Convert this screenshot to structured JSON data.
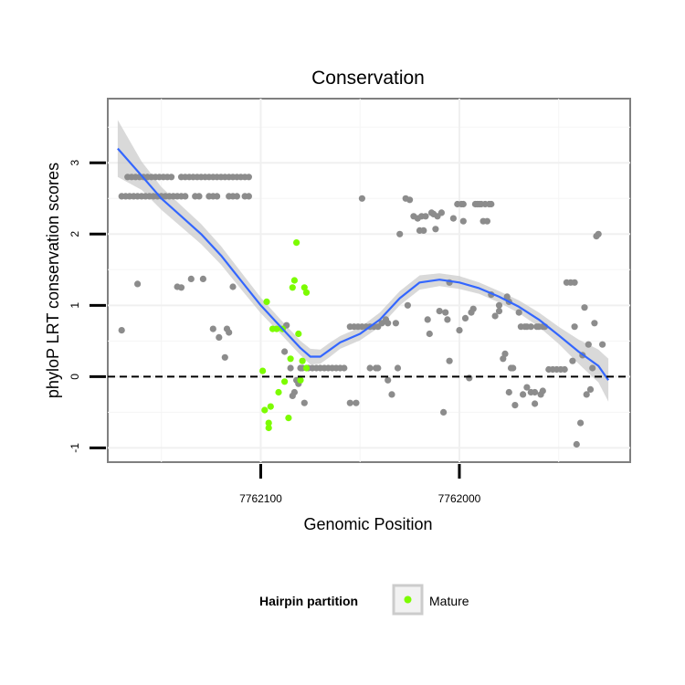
{
  "chart_data": {
    "type": "scatter",
    "title": "Conservation",
    "xlabel": "Genomic Position",
    "ylabel": "phyloP LRT conservation scores",
    "x_reversed": true,
    "xlim": [
      7762177,
      7761914
    ],
    "ylim": [
      -1.2,
      3.9
    ],
    "x_ticks": [
      7762100,
      7762000
    ],
    "x_tick_labels": [
      "7762100",
      "7762000"
    ],
    "y_ticks": [
      -1,
      0,
      1,
      2,
      3
    ],
    "y_tick_labels": [
      "-1",
      "0",
      "1",
      "2",
      "3"
    ],
    "grid": true,
    "reference_line": {
      "y": 0,
      "style": "dashed",
      "color": "#000000"
    },
    "legend": {
      "title": "Hairpin partition",
      "position": "bottom",
      "entries": [
        {
          "label": "Mature",
          "color": "#7CFC00"
        }
      ]
    },
    "colors": {
      "other": "#8c8c8c",
      "mature": "#7CFC00",
      "smooth": "#3366FF",
      "band": "#cccccc"
    },
    "series": [
      {
        "group": "other",
        "points": [
          [
            7762170,
            0.65
          ],
          [
            7762167,
            2.8
          ],
          [
            7762165,
            2.8
          ],
          [
            7762163,
            2.8
          ],
          [
            7762161,
            2.8
          ],
          [
            7762159,
            2.8
          ],
          [
            7762157,
            2.8
          ],
          [
            7762155,
            2.8
          ],
          [
            7762153,
            2.8
          ],
          [
            7762151,
            2.8
          ],
          [
            7762149,
            2.8
          ],
          [
            7762147,
            2.8
          ],
          [
            7762145,
            2.8
          ],
          [
            7762140,
            2.8
          ],
          [
            7762138,
            2.8
          ],
          [
            7762136,
            2.8
          ],
          [
            7762134,
            2.8
          ],
          [
            7762132,
            2.8
          ],
          [
            7762130,
            2.8
          ],
          [
            7762128,
            2.8
          ],
          [
            7762126,
            2.8
          ],
          [
            7762124,
            2.8
          ],
          [
            7762122,
            2.8
          ],
          [
            7762120,
            2.8
          ],
          [
            7762118,
            2.8
          ],
          [
            7762116,
            2.8
          ],
          [
            7762114,
            2.8
          ],
          [
            7762112,
            2.8
          ],
          [
            7762110,
            2.8
          ],
          [
            7762108,
            2.8
          ],
          [
            7762106,
            2.8
          ],
          [
            7762170,
            2.53
          ],
          [
            7762168,
            2.53
          ],
          [
            7762166,
            2.53
          ],
          [
            7762164,
            2.53
          ],
          [
            7762162,
            2.53
          ],
          [
            7762160,
            2.53
          ],
          [
            7762158,
            2.53
          ],
          [
            7762156,
            2.53
          ],
          [
            7762154,
            2.53
          ],
          [
            7762152,
            2.53
          ],
          [
            7762150,
            2.53
          ],
          [
            7762148,
            2.53
          ],
          [
            7762146,
            2.53
          ],
          [
            7762144,
            2.53
          ],
          [
            7762142,
            2.53
          ],
          [
            7762140,
            2.53
          ],
          [
            7762138,
            2.53
          ],
          [
            7762133,
            2.53
          ],
          [
            7762131,
            2.53
          ],
          [
            7762126,
            2.53
          ],
          [
            7762124,
            2.53
          ],
          [
            7762122,
            2.53
          ],
          [
            7762116,
            2.53
          ],
          [
            7762114,
            2.53
          ],
          [
            7762112,
            2.53
          ],
          [
            7762108,
            2.53
          ],
          [
            7762106,
            2.53
          ],
          [
            7762162,
            1.3
          ],
          [
            7762142,
            1.26
          ],
          [
            7762140,
            1.25
          ],
          [
            7762135,
            1.37
          ],
          [
            7762129,
            1.37
          ],
          [
            7762124,
            0.67
          ],
          [
            7762121,
            0.55
          ],
          [
            7762118,
            0.27
          ],
          [
            7762117,
            0.67
          ],
          [
            7762116,
            0.62
          ],
          [
            7762114,
            1.26
          ],
          [
            7762088,
            0.35
          ],
          [
            7762087,
            0.72
          ],
          [
            7762085,
            0.12
          ],
          [
            7762084,
            -0.27
          ],
          [
            7762083,
            -0.22
          ],
          [
            7762082,
            -0.05
          ],
          [
            7762081,
            -0.1
          ],
          [
            7762080,
            0.12
          ],
          [
            7762079,
            0.12
          ],
          [
            7762078,
            -0.37
          ],
          [
            7762076,
            0.12
          ],
          [
            7762074,
            0.12
          ],
          [
            7762072,
            0.12
          ],
          [
            7762070,
            0.12
          ],
          [
            7762068,
            0.12
          ],
          [
            7762066,
            0.12
          ],
          [
            7762064,
            0.12
          ],
          [
            7762062,
            0.12
          ],
          [
            7762060,
            0.12
          ],
          [
            7762058,
            0.12
          ],
          [
            7762055,
            0.7
          ],
          [
            7762053,
            0.7
          ],
          [
            7762051,
            0.7
          ],
          [
            7762049,
            0.7
          ],
          [
            7762047,
            0.7
          ],
          [
            7762045,
            0.7
          ],
          [
            7762043,
            0.7
          ],
          [
            7762041,
            0.7
          ],
          [
            7762055,
            -0.37
          ],
          [
            7762052,
            -0.37
          ],
          [
            7762049,
            2.5
          ],
          [
            7762045,
            0.12
          ],
          [
            7762042,
            0.12
          ],
          [
            7762041,
            0.12
          ],
          [
            7762039,
            0.75
          ],
          [
            7762037,
            0.8
          ],
          [
            7762036,
            0.75
          ],
          [
            7762036,
            -0.05
          ],
          [
            7762034,
            -0.25
          ],
          [
            7762032,
            0.75
          ],
          [
            7762031,
            0.12
          ],
          [
            7762030,
            2.0
          ],
          [
            7762027,
            2.5
          ],
          [
            7762026,
            1.0
          ],
          [
            7762025,
            2.48
          ],
          [
            7762023,
            2.25
          ],
          [
            7762021,
            2.22
          ],
          [
            7762020,
            2.05
          ],
          [
            7762019,
            2.25
          ],
          [
            7762018,
            2.05
          ],
          [
            7762017,
            2.25
          ],
          [
            7762016,
            0.8
          ],
          [
            7762015,
            0.6
          ],
          [
            7762014,
            2.3
          ],
          [
            7762013,
            2.28
          ],
          [
            7762012,
            2.07
          ],
          [
            7762011,
            2.25
          ],
          [
            7762010,
            0.92
          ],
          [
            7762009,
            2.3
          ],
          [
            7762008,
            -0.5
          ],
          [
            7762007,
            0.9
          ],
          [
            7762006,
            0.8
          ],
          [
            7762005,
            0.22
          ],
          [
            7762005,
            1.32
          ],
          [
            7762003,
            2.22
          ],
          [
            7762001,
            2.42
          ],
          [
            7762000,
            0.65
          ],
          [
            7761999,
            2.42
          ],
          [
            7761998,
            2.42
          ],
          [
            7761998,
            2.18
          ],
          [
            7761997,
            0.82
          ],
          [
            7761995,
            -0.02
          ],
          [
            7761994,
            0.9
          ],
          [
            7761993,
            0.95
          ],
          [
            7761992,
            2.42
          ],
          [
            7761991,
            2.42
          ],
          [
            7761990,
            2.42
          ],
          [
            7761989,
            2.42
          ],
          [
            7761988,
            2.18
          ],
          [
            7761987,
            2.42
          ],
          [
            7761986,
            2.18
          ],
          [
            7761985,
            2.42
          ],
          [
            7761984,
            2.42
          ],
          [
            7761984,
            1.15
          ],
          [
            7761982,
            0.85
          ],
          [
            7761980,
            0.92
          ],
          [
            7761980,
            1.0
          ],
          [
            7761978,
            0.25
          ],
          [
            7761977,
            0.32
          ],
          [
            7761976,
            1.12
          ],
          [
            7761975,
            1.05
          ],
          [
            7761975,
            -0.22
          ],
          [
            7761974,
            0.12
          ],
          [
            7761973,
            0.12
          ],
          [
            7761972,
            -0.4
          ],
          [
            7761970,
            0.9
          ],
          [
            7761969,
            0.7
          ],
          [
            7761968,
            -0.25
          ],
          [
            7761967,
            0.7
          ],
          [
            7761966,
            -0.15
          ],
          [
            7761966,
            0.7
          ],
          [
            7761964,
            -0.22
          ],
          [
            7761964,
            0.7
          ],
          [
            7761962,
            -0.22
          ],
          [
            7761962,
            -0.38
          ],
          [
            7761961,
            0.7
          ],
          [
            7761960,
            0.7
          ],
          [
            7761959,
            -0.25
          ],
          [
            7761958,
            -0.2
          ],
          [
            7761958,
            0.7
          ],
          [
            7761957,
            0.7
          ],
          [
            7761955,
            0.1
          ],
          [
            7761953,
            0.1
          ],
          [
            7761951,
            0.1
          ],
          [
            7761949,
            0.1
          ],
          [
            7761947,
            0.1
          ],
          [
            7761946,
            1.32
          ],
          [
            7761944,
            1.32
          ],
          [
            7761943,
            0.22
          ],
          [
            7761942,
            1.32
          ],
          [
            7761942,
            0.7
          ],
          [
            7761941,
            -0.95
          ],
          [
            7761939,
            -0.65
          ],
          [
            7761938,
            0.3
          ],
          [
            7761937,
            0.97
          ],
          [
            7761936,
            -0.25
          ],
          [
            7761935,
            0.45
          ],
          [
            7761934,
            -0.18
          ],
          [
            7761933,
            0.12
          ],
          [
            7761932,
            0.75
          ],
          [
            7761931,
            1.97
          ],
          [
            7761930,
            2.0
          ],
          [
            7761928,
            0.45
          ]
        ]
      },
      {
        "name": "Mature",
        "group": "mature",
        "points": [
          [
            7762099,
            0.08
          ],
          [
            7762097,
            1.05
          ],
          [
            7762098,
            -0.47
          ],
          [
            7762096,
            -0.72
          ],
          [
            7762096,
            -0.65
          ],
          [
            7762095,
            -0.42
          ],
          [
            7762094,
            0.67
          ],
          [
            7762092,
            0.67
          ],
          [
            7762091,
            -0.22
          ],
          [
            7762089,
            0.67
          ],
          [
            7762088,
            -0.07
          ],
          [
            7762086,
            -0.58
          ],
          [
            7762085,
            0.25
          ],
          [
            7762084,
            1.25
          ],
          [
            7762083,
            1.35
          ],
          [
            7762082,
            1.88
          ],
          [
            7762081,
            0.6
          ],
          [
            7762080,
            -0.05
          ],
          [
            7762079,
            0.22
          ],
          [
            7762078,
            1.25
          ],
          [
            7762077,
            1.18
          ],
          [
            7762077,
            0.12
          ]
        ]
      }
    ],
    "smooth": {
      "method": "loess",
      "x": [
        7762172,
        7762160,
        7762150,
        7762140,
        7762130,
        7762120,
        7762110,
        7762100,
        7762090,
        7762080,
        7762075,
        7762070,
        7762065,
        7762060,
        7762050,
        7762040,
        7762030,
        7762020,
        7762010,
        7762000,
        7761990,
        7761980,
        7761970,
        7761960,
        7761950,
        7761940,
        7761930,
        7761925
      ],
      "y": [
        3.2,
        2.82,
        2.5,
        2.25,
        2.0,
        1.7,
        1.35,
        1.0,
        0.7,
        0.4,
        0.28,
        0.28,
        0.38,
        0.48,
        0.6,
        0.8,
        1.1,
        1.32,
        1.36,
        1.32,
        1.24,
        1.12,
        0.98,
        0.8,
        0.58,
        0.35,
        0.15,
        -0.05
      ],
      "se_upper": [
        3.6,
        3.02,
        2.66,
        2.4,
        2.14,
        1.83,
        1.47,
        1.11,
        0.8,
        0.5,
        0.39,
        0.38,
        0.48,
        0.57,
        0.69,
        0.9,
        1.2,
        1.42,
        1.45,
        1.41,
        1.32,
        1.2,
        1.07,
        0.9,
        0.7,
        0.52,
        0.38,
        0.25
      ],
      "se_lower": [
        2.8,
        2.62,
        2.34,
        2.1,
        1.86,
        1.57,
        1.23,
        0.89,
        0.6,
        0.3,
        0.17,
        0.18,
        0.28,
        0.39,
        0.51,
        0.7,
        1.0,
        1.22,
        1.27,
        1.23,
        1.16,
        1.04,
        0.89,
        0.7,
        0.46,
        0.18,
        -0.08,
        -0.35
      ]
    }
  }
}
